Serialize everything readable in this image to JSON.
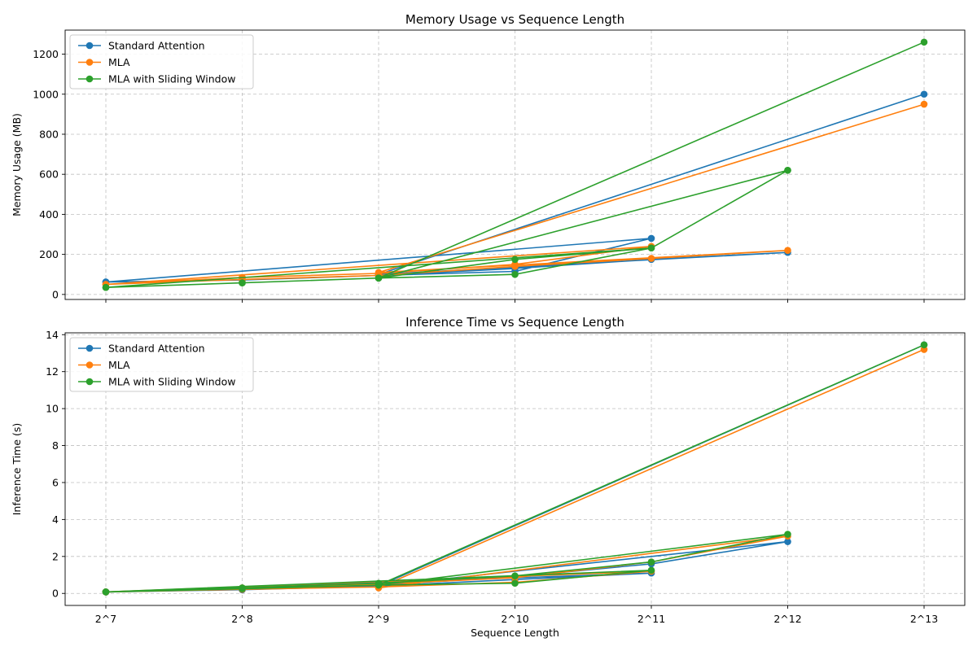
{
  "chart_data": [
    {
      "type": "line",
      "title": "Memory Usage vs Sequence Length",
      "xlabel": "",
      "ylabel": "Memory Usage (MB)",
      "xscale": "log2",
      "xlim": [
        7,
        13
      ],
      "ylim": [
        -25,
        1320
      ],
      "yticks": [
        0,
        200,
        400,
        600,
        800,
        1000,
        1200
      ],
      "grid": true,
      "legend_loc": "upper-left",
      "series": [
        {
          "name": "Standard Attention",
          "color": "#1f77b4",
          "x": [
            128,
            256,
            512,
            1024,
            2048,
            128,
            256,
            512,
            1024,
            2048,
            4096,
            512,
            8192
          ],
          "y": [
            62,
            72,
            95,
            115,
            280,
            62,
            72,
            95,
            130,
            175,
            210,
            100,
            1000
          ]
        },
        {
          "name": "MLA",
          "color": "#ff7f0e",
          "x": [
            128,
            256,
            512,
            1024,
            2048,
            128,
            256,
            512,
            1024,
            2048,
            4096,
            512,
            8192
          ],
          "y": [
            50,
            85,
            105,
            150,
            240,
            50,
            75,
            95,
            140,
            180,
            220,
            110,
            950
          ]
        },
        {
          "name": "MLA with Sliding Window",
          "color": "#2ca02c",
          "x": [
            128,
            256,
            512,
            1024,
            2048,
            128,
            256,
            512,
            1024,
            2048,
            4096,
            512,
            8192,
            512,
            4096
          ],
          "y": [
            35,
            58,
            82,
            100,
            232,
            35,
            58,
            82,
            175,
            232,
            620,
            82,
            1260,
            82,
            620
          ]
        }
      ]
    },
    {
      "type": "line",
      "title": "Inference Time vs Sequence Length",
      "xlabel": "Sequence Length",
      "ylabel": "Inference Time (s)",
      "xscale": "log2",
      "xlim": [
        7,
        13
      ],
      "ylim": [
        -0.65,
        14.1
      ],
      "yticks": [
        0,
        2,
        4,
        6,
        8,
        10,
        12,
        14
      ],
      "xticklabels": [
        "2^7",
        "2^8",
        "2^9",
        "2^10",
        "2^11",
        "2^12",
        "2^13"
      ],
      "grid": true,
      "legend_loc": "upper-left",
      "series": [
        {
          "name": "Standard Attention",
          "color": "#1f77b4",
          "x": [
            128,
            256,
            512,
            1024,
            2048,
            128,
            256,
            512,
            1024,
            2048,
            4096,
            512,
            8192
          ],
          "y": [
            0.08,
            0.2,
            0.4,
            0.75,
            1.1,
            0.08,
            0.2,
            0.45,
            0.9,
            1.6,
            2.8,
            0.4,
            13.45
          ]
        },
        {
          "name": "MLA",
          "color": "#ff7f0e",
          "x": [
            128,
            256,
            512,
            1024,
            2048,
            128,
            256,
            512,
            1024,
            2048,
            4096,
            512,
            8192
          ],
          "y": [
            0.08,
            0.22,
            0.35,
            0.6,
            1.2,
            0.08,
            0.3,
            0.5,
            0.85,
            1.7,
            3.1,
            0.3,
            13.2
          ]
        },
        {
          "name": "MLA with Sliding Window",
          "color": "#2ca02c",
          "x": [
            128,
            256,
            512,
            1024,
            2048,
            128,
            256,
            512,
            1024,
            2048,
            4096,
            512,
            8192
          ],
          "y": [
            0.08,
            0.25,
            0.45,
            0.55,
            1.25,
            0.08,
            0.3,
            0.55,
            0.95,
            1.7,
            3.2,
            0.45,
            13.45
          ]
        }
      ]
    }
  ]
}
